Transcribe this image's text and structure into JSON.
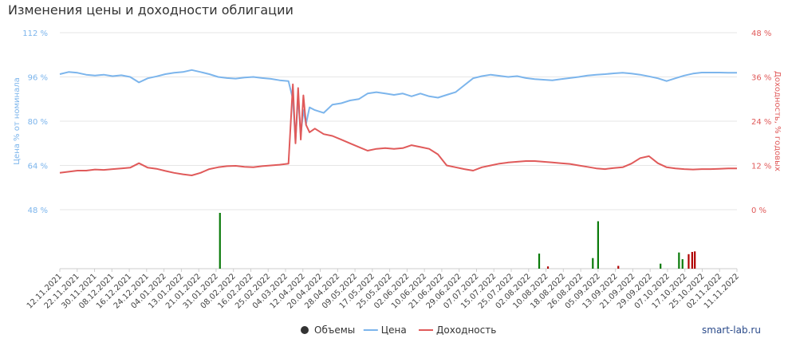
{
  "title": "Изменения цены и доходности облигации",
  "brand": "smart-lab.ru",
  "chart_data": {
    "type": "line",
    "title": "Изменения цены и доходности облигации",
    "y_left": {
      "label": "Цена % от номинала",
      "ticks": [
        "112 %",
        "96 %",
        "80 %",
        "64 %",
        "48 %"
      ],
      "values": [
        112,
        96,
        80,
        64,
        48
      ],
      "range": [
        48,
        112
      ]
    },
    "y_right": {
      "label": "Доходность, % годовых",
      "ticks": [
        "48 %",
        "36 %",
        "24 %",
        "12 %",
        "0 %"
      ],
      "values": [
        48,
        36,
        24,
        12,
        0
      ],
      "range": [
        0,
        48
      ]
    },
    "x_ticks": [
      "12.11.2021",
      "22.11.2021",
      "30.11.2021",
      "08.12.2021",
      "16.12.2021",
      "24.12.2021",
      "04.01.2022",
      "13.01.2022",
      "21.01.2022",
      "31.01.2022",
      "08.02.2022",
      "16.02.2022",
      "25.02.2022",
      "04.03.2022",
      "12.04.2022",
      "20.04.2022",
      "28.04.2022",
      "09.05.2022",
      "17.05.2022",
      "25.05.2022",
      "02.06.2022",
      "10.06.2022",
      "21.06.2022",
      "29.06.2022",
      "07.07.2022",
      "15.07.2022",
      "25.07.2022",
      "02.08.2022",
      "10.08.2022",
      "18.08.2022",
      "26.08.2022",
      "05.09.2022",
      "13.09.2022",
      "21.09.2022",
      "29.09.2022",
      "07.10.2022",
      "17.10.2022",
      "25.10.2022",
      "02.11.2022",
      "11.11.2022"
    ],
    "legend": [
      {
        "name": "Объемы",
        "color": "#333333"
      },
      {
        "name": "Цена",
        "color": "#7cb5ec"
      },
      {
        "name": "Доходность",
        "color": "#e05a5a"
      }
    ],
    "grid": true,
    "series": [
      {
        "name": "Цена",
        "color": "#7cb5ec",
        "axis": "left",
        "points": [
          [
            0,
            97
          ],
          [
            1,
            97.8
          ],
          [
            2,
            97.5
          ],
          [
            3,
            96.8
          ],
          [
            4,
            96.5
          ],
          [
            5,
            96.8
          ],
          [
            6,
            96.3
          ],
          [
            7,
            96.6
          ],
          [
            8,
            96
          ],
          [
            9,
            94
          ],
          [
            10,
            95.5
          ],
          [
            11,
            96.2
          ],
          [
            12,
            97
          ],
          [
            13,
            97.5
          ],
          [
            14,
            97.8
          ],
          [
            15,
            98.5
          ],
          [
            16,
            97.8
          ],
          [
            17,
            97
          ],
          [
            18,
            96
          ],
          [
            19,
            95.6
          ],
          [
            20,
            95.4
          ],
          [
            21,
            95.8
          ],
          [
            22,
            96
          ],
          [
            23,
            95.6
          ],
          [
            24,
            95.3
          ],
          [
            25,
            94.8
          ],
          [
            26,
            94.5
          ],
          [
            26.5,
            88
          ],
          [
            26.8,
            73
          ],
          [
            27.1,
            89
          ],
          [
            27.4,
            75
          ],
          [
            27.7,
            84
          ],
          [
            28,
            79
          ],
          [
            28.4,
            85
          ],
          [
            29,
            84
          ],
          [
            30,
            83
          ],
          [
            31,
            86
          ],
          [
            32,
            86.5
          ],
          [
            33,
            87.5
          ],
          [
            34,
            88
          ],
          [
            35,
            90
          ],
          [
            36,
            90.5
          ],
          [
            37,
            90
          ],
          [
            38,
            89.5
          ],
          [
            39,
            90
          ],
          [
            40,
            89
          ],
          [
            41,
            90
          ],
          [
            42,
            89
          ],
          [
            43,
            88.5
          ],
          [
            44,
            89.5
          ],
          [
            45,
            90.5
          ],
          [
            46,
            93
          ],
          [
            47,
            95.5
          ],
          [
            48,
            96.3
          ],
          [
            49,
            96.8
          ],
          [
            50,
            96.4
          ],
          [
            51,
            96
          ],
          [
            52,
            96.3
          ],
          [
            53,
            95.6
          ],
          [
            54,
            95.2
          ],
          [
            55,
            95
          ],
          [
            56,
            94.8
          ],
          [
            57,
            95.2
          ],
          [
            58,
            95.6
          ],
          [
            59,
            96
          ],
          [
            60,
            96.5
          ],
          [
            61,
            96.8
          ],
          [
            62,
            97
          ],
          [
            63,
            97.3
          ],
          [
            64,
            97.5
          ],
          [
            65,
            97.2
          ],
          [
            66,
            96.8
          ],
          [
            67,
            96.2
          ],
          [
            68,
            95.5
          ],
          [
            69,
            94.5
          ],
          [
            70,
            95.5
          ],
          [
            71,
            96.5
          ],
          [
            72,
            97.2
          ],
          [
            73,
            97.6
          ],
          [
            74,
            97.6
          ],
          [
            75,
            97.6
          ],
          [
            76,
            97.5
          ],
          [
            77,
            97.5
          ]
        ]
      },
      {
        "name": "Доходность",
        "color": "#e05a5a",
        "axis": "right",
        "points": [
          [
            0,
            10
          ],
          [
            1,
            10.3
          ],
          [
            2,
            10.6
          ],
          [
            3,
            10.6
          ],
          [
            4,
            10.9
          ],
          [
            5,
            10.8
          ],
          [
            6,
            11
          ],
          [
            7,
            11.2
          ],
          [
            8,
            11.4
          ],
          [
            9,
            12.6
          ],
          [
            10,
            11.4
          ],
          [
            11,
            11.1
          ],
          [
            12,
            10.5
          ],
          [
            13,
            10
          ],
          [
            14,
            9.6
          ],
          [
            15,
            9.3
          ],
          [
            16,
            10
          ],
          [
            17,
            11
          ],
          [
            18,
            11.5
          ],
          [
            19,
            11.8
          ],
          [
            20,
            11.9
          ],
          [
            21,
            11.6
          ],
          [
            22,
            11.5
          ],
          [
            23,
            11.8
          ],
          [
            24,
            12
          ],
          [
            25,
            12.2
          ],
          [
            26,
            12.5
          ],
          [
            26.5,
            34
          ],
          [
            26.8,
            18
          ],
          [
            27.1,
            33
          ],
          [
            27.4,
            19
          ],
          [
            27.7,
            31
          ],
          [
            28,
            23
          ],
          [
            28.4,
            21
          ],
          [
            29,
            22
          ],
          [
            30,
            20.5
          ],
          [
            31,
            20
          ],
          [
            32,
            19
          ],
          [
            33,
            18
          ],
          [
            34,
            17
          ],
          [
            35,
            16
          ],
          [
            36,
            16.5
          ],
          [
            37,
            16.7
          ],
          [
            38,
            16.5
          ],
          [
            39,
            16.7
          ],
          [
            40,
            17.5
          ],
          [
            41,
            17
          ],
          [
            42,
            16.5
          ],
          [
            43,
            15
          ],
          [
            44,
            12
          ],
          [
            45,
            11.5
          ],
          [
            46,
            11
          ],
          [
            47,
            10.6
          ],
          [
            48,
            11.5
          ],
          [
            49,
            12
          ],
          [
            50,
            12.5
          ],
          [
            51,
            12.8
          ],
          [
            52,
            13
          ],
          [
            53,
            13.2
          ],
          [
            54,
            13.2
          ],
          [
            55,
            13
          ],
          [
            56,
            12.8
          ],
          [
            57,
            12.6
          ],
          [
            58,
            12.4
          ],
          [
            59,
            12
          ],
          [
            60,
            11.6
          ],
          [
            61,
            11.2
          ],
          [
            62,
            11
          ],
          [
            63,
            11.3
          ],
          [
            64,
            11.5
          ],
          [
            65,
            12.5
          ],
          [
            66,
            14
          ],
          [
            67,
            14.5
          ],
          [
            68,
            12.6
          ],
          [
            69,
            11.5
          ],
          [
            70,
            11.2
          ],
          [
            71,
            11
          ],
          [
            72,
            10.9
          ],
          [
            73,
            11
          ],
          [
            74,
            11
          ],
          [
            75,
            11.1
          ],
          [
            76,
            11.2
          ],
          [
            77,
            11.2
          ]
        ]
      }
    ],
    "volumes": {
      "name": "Объемы",
      "bars": [
        [
          18.2,
          "#0a7a0a",
          1
        ],
        [
          54.5,
          "#0a7a0a",
          0.27
        ],
        [
          55.5,
          "#b00000",
          0.04
        ],
        [
          60.6,
          "#0a7a0a",
          0.19
        ],
        [
          61.2,
          "#0a7a0a",
          0.85
        ],
        [
          63.5,
          "#b00000",
          0.05
        ],
        [
          68.3,
          "#0a7a0a",
          0.09
        ],
        [
          70.4,
          "#0a7a0a",
          0.29
        ],
        [
          70.8,
          "#0a7a0a",
          0.17
        ],
        [
          71.5,
          "#b00000",
          0.26
        ],
        [
          71.9,
          "#b00000",
          0.3
        ],
        [
          72.2,
          "#b00000",
          0.31
        ]
      ]
    }
  }
}
